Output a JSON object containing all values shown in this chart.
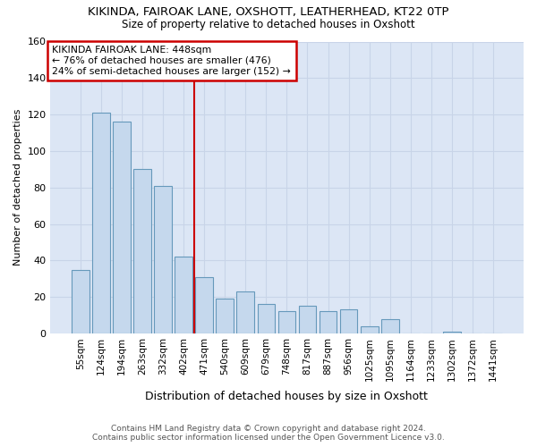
{
  "title": "KIKINDA, FAIROAK LANE, OXSHOTT, LEATHERHEAD, KT22 0TP",
  "subtitle": "Size of property relative to detached houses in Oxshott",
  "xlabel": "Distribution of detached houses by size in Oxshott",
  "ylabel": "Number of detached properties",
  "bar_color": "#c5d8ed",
  "bar_edge_color": "#6699bb",
  "categories": [
    "55sqm",
    "124sqm",
    "194sqm",
    "263sqm",
    "332sqm",
    "402sqm",
    "471sqm",
    "540sqm",
    "609sqm",
    "679sqm",
    "748sqm",
    "817sqm",
    "887sqm",
    "956sqm",
    "1025sqm",
    "1095sqm",
    "1164sqm",
    "1233sqm",
    "1302sqm",
    "1372sqm",
    "1441sqm"
  ],
  "values": [
    35,
    121,
    116,
    90,
    81,
    42,
    31,
    19,
    23,
    16,
    12,
    15,
    12,
    13,
    4,
    8,
    0,
    0,
    1,
    0,
    0
  ],
  "ylim": [
    0,
    160
  ],
  "yticks": [
    0,
    20,
    40,
    60,
    80,
    100,
    120,
    140,
    160
  ],
  "annotation_line1": "KIKINDA FAIROAK LANE: 448sqm",
  "annotation_line2": "← 76% of detached houses are smaller (476)",
  "annotation_line3": "24% of semi-detached houses are larger (152) →",
  "annotation_box_color": "#cc0000",
  "vline_color": "#cc0000",
  "vline_x": 6.0,
  "grid_color": "#c8d4e8",
  "background_color": "#dce6f5",
  "footer1": "Contains HM Land Registry data © Crown copyright and database right 2024.",
  "footer2": "Contains public sector information licensed under the Open Government Licence v3.0."
}
